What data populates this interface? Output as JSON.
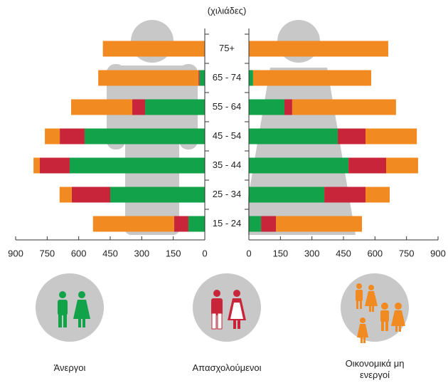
{
  "chart_data": [
    {
      "type": "bar",
      "title": "(χιλιάδες)",
      "reversed": true,
      "categories": [
        "75+",
        "65 - 74",
        "55 - 64",
        "45 - 54",
        "35 - 44",
        "25 - 34",
        "15 - 24"
      ],
      "xlim": [
        0,
        900
      ],
      "xticks": [
        0,
        150,
        300,
        450,
        600,
        750,
        900
      ],
      "series": [
        {
          "name": "Άνεργοι",
          "color": "#12a24a",
          "values": [
            0,
            25,
            284,
            572,
            643,
            450,
            78
          ]
        },
        {
          "name": "Απασχολούμενοι",
          "color": "#c8243a",
          "values": [
            0,
            5,
            61,
            118,
            142,
            183,
            68
          ]
        },
        {
          "name": "Οικονομικά μη ενεργοί",
          "color": "#f28a22",
          "values": [
            485,
            477,
            291,
            71,
            30,
            58,
            386
          ]
        }
      ]
    },
    {
      "type": "bar",
      "reversed": false,
      "xlim": [
        0,
        900
      ],
      "xticks": [
        0,
        150,
        300,
        450,
        600,
        750,
        900
      ],
      "series": [
        {
          "color": "#12a24a",
          "values": [
            0,
            20,
            169,
            423,
            474,
            359,
            58
          ]
        },
        {
          "color": "#c8243a",
          "values": [
            0,
            0,
            37,
            132,
            179,
            196,
            71
          ]
        },
        {
          "color": "#f28a22",
          "values": [
            663,
            562,
            494,
            244,
            152,
            115,
            409
          ]
        }
      ]
    }
  ]
}
